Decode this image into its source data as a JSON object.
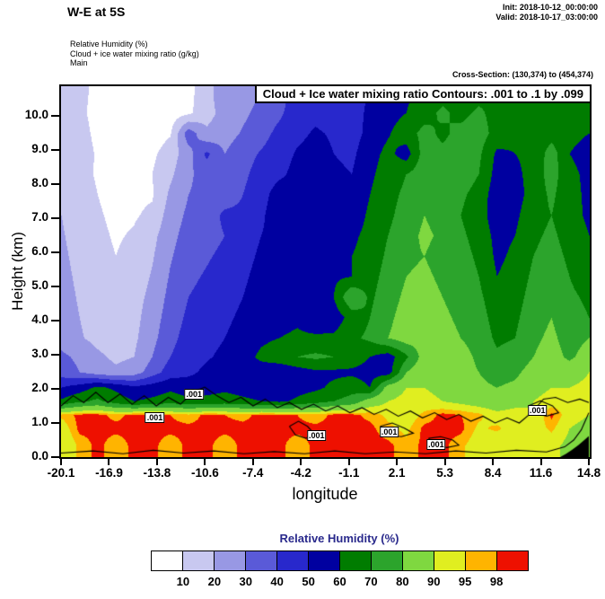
{
  "header": {
    "title": "W-E at 5S",
    "init_line": "Init: 2018-10-12_00:00:00",
    "valid_line": "Valid: 2018-10-17_03:00:00",
    "field_lines": [
      "Relative Humidity  (%)",
      "Cloud + ice water mixing ratio  (g/kg)",
      "Main"
    ],
    "cross_section": "Cross-Section: (130,374) to (454,374)"
  },
  "plot": {
    "contour_box_title": "Cloud + Ice water mixing ratio Contours: .001 to .1 by .099"
  },
  "axes": {
    "y": {
      "label": "Height (km)",
      "ticks": [
        "0.0",
        "1.0",
        "2.0",
        "3.0",
        "4.0",
        "5.0",
        "6.0",
        "7.0",
        "8.0",
        "9.0",
        "10.0"
      ]
    },
    "x": {
      "label": "longitude",
      "ticks": [
        "-20.1",
        "-16.9",
        "-13.8",
        "-10.6",
        "-7.4",
        "-4.2",
        "-1.1",
        "2.1",
        "5.3",
        "8.4",
        "11.6",
        "14.8"
      ]
    }
  },
  "legend": {
    "title": "Relative Humidity  (%)",
    "tick_values": [
      "10",
      "20",
      "30",
      "40",
      "50",
      "60",
      "70",
      "80",
      "90",
      "95",
      "98"
    ],
    "colors": [
      "#ffffff",
      "#c8c8f0",
      "#9898e4",
      "#5a5ad8",
      "#2828cc",
      "#0000a0",
      "#007c00",
      "#2ca42c",
      "#7fd840",
      "#e0ee20",
      "#ffb400",
      "#ee1000"
    ]
  },
  "chart_data": {
    "type": "heatmap",
    "title": "W-E at 5S",
    "xlabel": "longitude",
    "ylabel": "Height (km)",
    "x_range": [
      -20.1,
      14.8
    ],
    "y_range": [
      0,
      10.87
    ],
    "x_ticks": [
      -20.1,
      -16.9,
      -13.8,
      -10.6,
      -7.4,
      -4.2,
      -1.1,
      2.1,
      5.3,
      8.4,
      11.6,
      14.8
    ],
    "y_ticks": [
      0,
      1,
      2,
      3,
      4,
      5,
      6,
      7,
      8,
      9,
      10
    ],
    "legend_position": "bottom",
    "grid_on": false,
    "field_name": "Relative Humidity (%)",
    "rh_levels": [
      10,
      20,
      30,
      40,
      50,
      60,
      70,
      80,
      90,
      95,
      98
    ],
    "rh_colors": [
      "#ffffff",
      "#c8c8f0",
      "#9898e4",
      "#5a5ad8",
      "#2828cc",
      "#0000a0",
      "#007c00",
      "#2ca42c",
      "#7fd840",
      "#e0ee20",
      "#ffb400",
      "#ee1000"
    ],
    "grid": {
      "lons": [
        -20.1,
        -18.9,
        -17.7,
        -16.5,
        -15.3,
        -14.1,
        -12.9,
        -11.7,
        -10.5,
        -9.3,
        -8.1,
        -6.9,
        -5.7,
        -4.5,
        -3.3,
        -2.1,
        -0.9,
        0.3,
        1.5,
        2.7,
        3.9,
        5.1,
        6.3,
        7.5,
        8.7,
        9.9,
        11.1,
        12.3,
        13.5,
        14.8
      ],
      "heights": [
        10.7,
        10.1,
        9.5,
        8.9,
        8.3,
        7.7,
        7.1,
        6.5,
        5.9,
        5.3,
        4.7,
        4.1,
        3.5,
        2.95,
        2.5,
        2.05,
        1.65,
        1.25,
        0.85,
        0.35
      ],
      "values": [
        [
          15,
          12,
          8,
          5,
          4,
          4,
          5,
          8,
          14,
          30,
          26,
          30,
          36,
          44,
          46,
          46,
          48,
          50,
          54,
          58,
          64,
          66,
          63,
          66,
          68,
          64,
          62,
          66,
          62,
          62
        ],
        [
          16,
          12,
          7,
          4,
          4,
          4,
          5,
          8,
          16,
          24,
          28,
          33,
          38,
          46,
          48,
          46,
          46,
          52,
          56,
          60,
          66,
          72,
          67,
          72,
          66,
          62,
          64,
          68,
          64,
          62
        ],
        [
          18,
          13,
          8,
          5,
          4,
          5,
          9,
          36,
          22,
          26,
          31,
          36,
          43,
          48,
          51,
          49,
          46,
          53,
          59,
          66,
          73,
          68,
          73,
          75,
          66,
          62,
          61,
          66,
          62,
          60
        ],
        [
          20,
          14,
          9,
          5,
          5,
          8,
          15,
          26,
          42,
          30,
          36,
          41,
          46,
          51,
          53,
          50,
          48,
          56,
          63,
          55,
          75,
          72,
          75,
          72,
          58,
          60,
          62,
          75,
          60,
          57
        ],
        [
          18,
          13,
          9,
          6,
          6,
          10,
          18,
          28,
          35,
          32,
          38,
          44,
          48,
          53,
          55,
          52,
          50,
          58,
          65,
          70,
          76,
          73,
          76,
          70,
          56,
          58,
          63,
          75,
          62,
          58
        ],
        [
          19,
          14,
          10,
          7,
          8,
          9,
          22,
          30,
          33,
          35,
          40,
          46,
          55,
          55,
          57,
          54,
          52,
          60,
          67,
          72,
          78,
          75,
          72,
          66,
          54,
          56,
          64,
          72,
          63,
          58
        ],
        [
          20,
          15,
          11,
          8,
          9,
          12,
          25,
          32,
          35,
          42,
          42,
          48,
          57,
          57,
          58,
          56,
          54,
          62,
          68,
          74,
          80,
          76,
          70,
          64,
          55,
          58,
          66,
          70,
          64,
          58
        ],
        [
          21,
          16,
          12,
          9,
          11,
          17,
          27,
          34,
          37,
          40,
          44,
          50,
          54,
          56,
          58,
          58,
          58,
          63,
          70,
          76,
          82,
          78,
          72,
          66,
          57,
          60,
          68,
          72,
          66,
          60
        ],
        [
          22,
          17,
          13,
          10,
          13,
          19,
          29,
          36,
          39,
          42,
          46,
          52,
          56,
          56,
          58,
          58,
          60,
          64,
          72,
          78,
          80,
          76,
          74,
          68,
          58,
          62,
          70,
          74,
          68,
          62
        ],
        [
          23,
          18,
          14,
          11,
          14,
          21,
          31,
          38,
          41,
          44,
          48,
          54,
          58,
          56,
          58,
          58,
          60,
          66,
          74,
          80,
          82,
          78,
          76,
          70,
          60,
          64,
          72,
          76,
          70,
          64
        ],
        [
          24,
          19,
          15,
          12,
          16,
          23,
          33,
          40,
          43,
          46,
          50,
          56,
          60,
          58,
          58,
          60,
          80,
          68,
          76,
          82,
          84,
          80,
          78,
          72,
          64,
          66,
          74,
          78,
          72,
          68
        ],
        [
          25,
          20,
          16,
          13,
          17,
          25,
          35,
          42,
          45,
          48,
          52,
          56,
          56,
          58,
          52,
          54,
          64,
          70,
          78,
          84,
          82,
          81,
          79,
          74,
          66,
          68,
          76,
          80,
          74,
          70
        ],
        [
          26,
          21,
          17,
          14,
          18,
          27,
          37,
          44,
          47,
          50,
          54,
          58,
          60,
          62,
          62,
          62,
          68,
          72,
          80,
          85,
          84,
          82,
          80,
          76,
          68,
          70,
          78,
          82,
          76,
          80
        ],
        [
          32,
          28,
          22,
          18,
          20,
          30,
          40,
          46,
          49,
          52,
          56,
          62,
          66,
          70,
          72,
          70,
          66,
          60,
          55,
          68,
          85,
          86,
          84,
          78,
          72,
          74,
          80,
          84,
          78,
          85
        ],
        [
          35,
          30,
          25,
          22,
          25,
          35,
          45,
          48,
          52,
          55,
          58,
          55,
          52,
          55,
          58,
          58,
          58,
          56,
          55,
          80,
          88,
          86,
          84,
          80,
          76,
          78,
          84,
          88,
          86,
          90
        ],
        [
          50,
          55,
          62,
          58,
          52,
          55,
          58,
          55,
          56,
          58,
          56,
          54,
          53,
          56,
          58,
          62,
          66,
          60,
          85,
          90,
          90,
          88,
          86,
          82,
          80,
          82,
          88,
          90,
          90,
          92
        ],
        [
          62,
          68,
          72,
          65,
          60,
          62,
          65,
          62,
          63,
          64,
          62,
          60,
          58,
          62,
          66,
          70,
          74,
          85,
          90,
          92,
          92,
          90,
          88,
          86,
          84,
          86,
          90,
          92,
          94,
          95
        ],
        [
          96,
          99,
          99,
          97,
          99,
          99,
          98,
          96,
          99,
          98,
          97,
          99,
          99,
          98,
          96,
          99,
          99,
          97,
          94,
          92,
          96,
          99,
          98,
          96,
          92,
          94,
          90,
          99,
          92,
          90
        ],
        [
          92,
          99,
          99,
          99,
          99,
          99,
          99,
          99,
          99,
          99,
          99,
          99,
          99,
          99,
          99,
          99,
          99,
          99,
          96,
          94,
          99,
          99,
          99,
          94,
          96,
          92,
          92,
          96,
          90,
          88
        ],
        [
          90,
          96,
          99,
          96,
          99,
          99,
          96,
          99,
          99,
          96,
          99,
          99,
          99,
          96,
          99,
          99,
          99,
          99,
          99,
          96,
          99,
          99,
          96,
          92,
          90,
          92,
          90,
          92,
          88,
          86
        ]
      ]
    },
    "cloud_contours": {
      "levels_text": ".001 to .1 by .099",
      "labels": [
        {
          "text": ".001",
          "lon": -13.9,
          "z": 1.15
        },
        {
          "text": ".001",
          "lon": -11.3,
          "z": 1.85
        },
        {
          "text": ".001",
          "lon": -3.2,
          "z": 0.62
        },
        {
          "text": ".001",
          "lon": 1.6,
          "z": 0.74
        },
        {
          "text": ".001",
          "lon": 4.7,
          "z": 0.37
        },
        {
          "text": ".001",
          "lon": 11.4,
          "z": 1.37
        }
      ],
      "lines": [
        [
          [
            -20.1,
            1.5
          ],
          [
            -19.3,
            1.8
          ],
          [
            -18.6,
            1.6
          ],
          [
            -17.8,
            1.9
          ],
          [
            -17,
            1.6
          ],
          [
            -16.2,
            1.85
          ],
          [
            -15.4,
            1.55
          ],
          [
            -14.6,
            1.8
          ],
          [
            -13.8,
            1.5
          ],
          [
            -13,
            1.75
          ],
          [
            -12.2,
            1.55
          ],
          [
            -11.4,
            1.9
          ],
          [
            -10.6,
            2.05
          ],
          [
            -9.8,
            1.8
          ],
          [
            -9,
            1.6
          ],
          [
            -8.2,
            1.75
          ],
          [
            -7.4,
            1.5
          ],
          [
            -6.6,
            1.7
          ],
          [
            -5.8,
            1.45
          ],
          [
            -5,
            1.6
          ],
          [
            -4.2,
            1.4
          ],
          [
            -3.4,
            1.55
          ],
          [
            -2.6,
            1.35
          ],
          [
            -1.8,
            1.5
          ],
          [
            -1,
            1.3
          ],
          [
            -0.2,
            1.45
          ],
          [
            0.6,
            1.25
          ],
          [
            1.4,
            1.4
          ],
          [
            2.2,
            1.2
          ],
          [
            3,
            1.35
          ],
          [
            3.8,
            1.15
          ],
          [
            4.6,
            1.3
          ],
          [
            5.4,
            1.1
          ],
          [
            6.2,
            1.25
          ],
          [
            7,
            1.05
          ],
          [
            7.8,
            1.2
          ],
          [
            8.6,
            1
          ],
          [
            9.4,
            1.15
          ],
          [
            10.2,
            1
          ],
          [
            11,
            1.3
          ],
          [
            11.8,
            1.7
          ],
          [
            12.6,
            1.75
          ],
          [
            13.4,
            1.6
          ],
          [
            14.2,
            1.7
          ],
          [
            14.8,
            1.6
          ]
        ],
        [
          [
            -20.1,
            0.12
          ],
          [
            -18,
            0.18
          ],
          [
            -16,
            0.1
          ],
          [
            -14,
            0.2
          ],
          [
            -12,
            0.12
          ],
          [
            -10,
            0.18
          ],
          [
            -8,
            0.1
          ],
          [
            -6,
            0.16
          ],
          [
            -4,
            0.1
          ],
          [
            -2,
            0.18
          ],
          [
            0,
            0.1
          ],
          [
            2,
            0.15
          ],
          [
            4,
            0.1
          ],
          [
            6,
            0.18
          ],
          [
            8,
            0.12
          ],
          [
            10,
            0.2
          ],
          [
            12,
            0.15
          ],
          [
            13.2,
            0.3
          ],
          [
            13.8,
            0.5
          ],
          [
            14.3,
            0.8
          ],
          [
            14.6,
            1.1
          ],
          [
            14.8,
            1.3
          ]
        ],
        [
          [
            -5,
            0.9
          ],
          [
            -4.4,
            1.05
          ],
          [
            -3.8,
            0.9
          ],
          [
            -3.4,
            0.7
          ],
          [
            -3.9,
            0.55
          ],
          [
            -4.6,
            0.65
          ],
          [
            -5,
            0.9
          ]
        ],
        [
          [
            1,
            0.9
          ],
          [
            1.8,
            1
          ],
          [
            2.6,
            0.85
          ],
          [
            3.2,
            0.7
          ],
          [
            2.4,
            0.6
          ],
          [
            1.5,
            0.65
          ],
          [
            1,
            0.9
          ]
        ],
        [
          [
            4.2,
            0.55
          ],
          [
            5,
            0.6
          ],
          [
            5.8,
            0.5
          ],
          [
            6.2,
            0.35
          ],
          [
            5.4,
            0.28
          ],
          [
            4.6,
            0.33
          ],
          [
            4.2,
            0.55
          ]
        ],
        [
          [
            10.8,
            1.5
          ],
          [
            11.6,
            1.65
          ],
          [
            12.4,
            1.5
          ],
          [
            12.8,
            1.3
          ],
          [
            12,
            1.2
          ],
          [
            11.2,
            1.3
          ],
          [
            10.8,
            1.5
          ]
        ]
      ]
    },
    "terrain": [
      [
        12.9,
        0
      ],
      [
        13.3,
        0.1
      ],
      [
        13.7,
        0.22
      ],
      [
        14.1,
        0.35
      ],
      [
        14.5,
        0.5
      ],
      [
        14.8,
        0.62
      ],
      [
        14.8,
        0
      ]
    ]
  }
}
